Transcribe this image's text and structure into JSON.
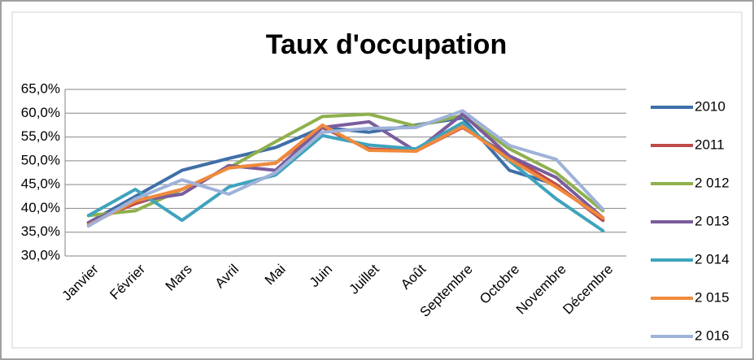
{
  "chart_data": {
    "type": "line",
    "title": "Taux d'occupation",
    "categories": [
      "Janvier",
      "Février",
      "Mars",
      "Avril",
      "Mai",
      "Juin",
      "Juillet",
      "Août",
      "Septembre",
      "Octobre",
      "Novembre",
      "Décembre"
    ],
    "series": [
      {
        "name": "2010",
        "color": "#3f6fa8",
        "values": [
          37,
          42.5,
          48,
          50.5,
          52.8,
          57,
          56,
          57.5,
          59,
          48,
          45,
          37.5
        ]
      },
      {
        "name": "2011",
        "color": "#be4b48",
        "values": [
          37,
          41,
          44,
          48.5,
          49.5,
          57,
          52.5,
          52,
          57,
          51,
          45,
          37.5
        ]
      },
      {
        "name": "2 012",
        "color": "#8fb04d",
        "values": [
          38.5,
          39.5,
          44,
          48.5,
          54,
          59.3,
          59.8,
          57.3,
          59.5,
          52.5,
          47.5,
          39.5
        ]
      },
      {
        "name": "2 013",
        "color": "#7a5c9c",
        "values": [
          37,
          41.5,
          43,
          49,
          48,
          57,
          58.2,
          52,
          59.8,
          51,
          46.5,
          38
        ]
      },
      {
        "name": "2 014",
        "color": "#3fa3bd",
        "values": [
          38.5,
          44,
          37.5,
          44.5,
          47,
          55.3,
          53.3,
          52.5,
          58,
          50,
          42,
          35.3
        ]
      },
      {
        "name": "2 015",
        "color": "#f08a3c",
        "values": [
          36.5,
          41.5,
          44,
          48.5,
          49.5,
          57.5,
          52.2,
          52,
          57.2,
          50.3,
          44.5,
          38
        ]
      },
      {
        "name": "2 016",
        "color": "#9fb2d8",
        "values": [
          36.3,
          42,
          46,
          43,
          47.5,
          56,
          56.8,
          57,
          60.5,
          53.2,
          50.3,
          39.8
        ]
      }
    ],
    "ylim": [
      30,
      65
    ],
    "yticks": [
      {
        "value": 30,
        "label": "30,0%"
      },
      {
        "value": 35,
        "label": "35,0%"
      },
      {
        "value": 40,
        "label": "40,0%"
      },
      {
        "value": 45,
        "label": "45,0%"
      },
      {
        "value": 50,
        "label": "50,0%"
      },
      {
        "value": 55,
        "label": "55,0%"
      },
      {
        "value": 60,
        "label": "60,0%"
      },
      {
        "value": 65,
        "label": "65,0%"
      }
    ],
    "grid": true,
    "legend": "right"
  }
}
